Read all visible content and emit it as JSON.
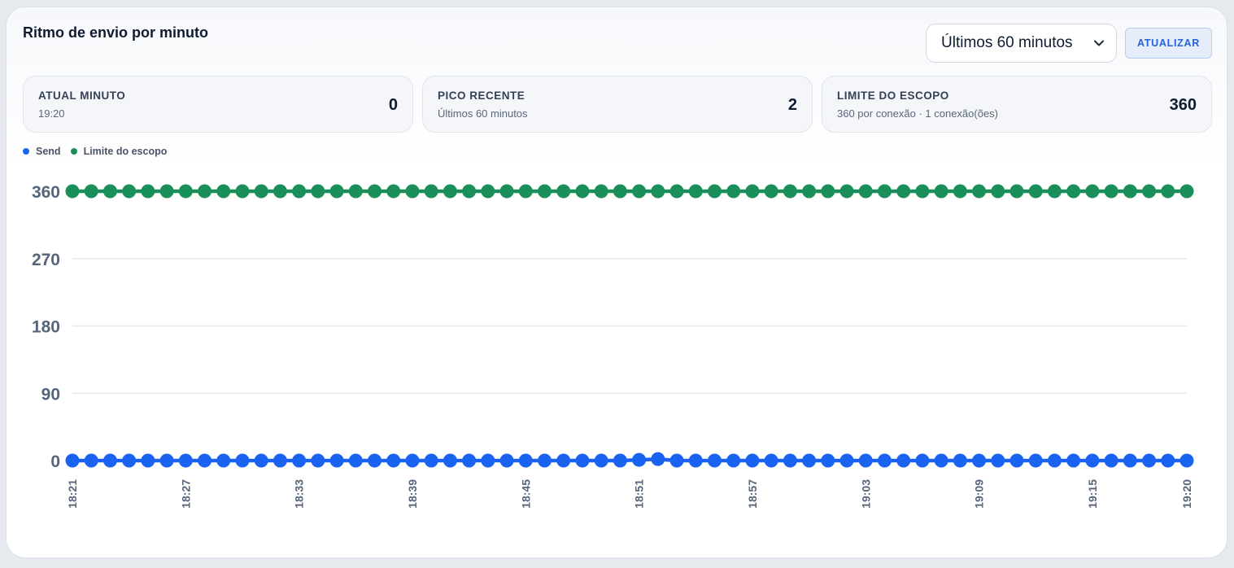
{
  "header": {
    "title": "Ritmo de envio por minuto",
    "range_select": {
      "value": "Últimos 60 minutos",
      "icon": "chevron-down-icon"
    },
    "refresh_label": "ATUALIZAR"
  },
  "stats": [
    {
      "label": "ATUAL MINUTO",
      "sub": "19:20",
      "value": "0"
    },
    {
      "label": "PICO RECENTE",
      "sub": "Últimos 60 minutos",
      "value": "2"
    },
    {
      "label": "LIMITE DO ESCOPO",
      "sub": "360 por conexão · 1 conexão(ões)",
      "value": "360"
    }
  ],
  "legend": [
    {
      "name": "Send",
      "color": "#1a63f0"
    },
    {
      "name": "Limite do escopo",
      "color": "#1a8f5a"
    }
  ],
  "chart_data": {
    "type": "line",
    "x": [
      "18:21",
      "18:22",
      "18:23",
      "18:24",
      "18:25",
      "18:26",
      "18:27",
      "18:28",
      "18:29",
      "18:30",
      "18:31",
      "18:32",
      "18:33",
      "18:34",
      "18:35",
      "18:36",
      "18:37",
      "18:38",
      "18:39",
      "18:40",
      "18:41",
      "18:42",
      "18:43",
      "18:44",
      "18:45",
      "18:46",
      "18:47",
      "18:48",
      "18:49",
      "18:50",
      "18:51",
      "18:52",
      "18:53",
      "18:54",
      "18:55",
      "18:56",
      "18:57",
      "18:58",
      "18:59",
      "19:00",
      "19:01",
      "19:02",
      "19:03",
      "19:04",
      "19:05",
      "19:06",
      "19:07",
      "19:08",
      "19:09",
      "19:10",
      "19:11",
      "19:12",
      "19:13",
      "19:14",
      "19:15",
      "19:16",
      "19:17",
      "19:18",
      "19:19",
      "19:20"
    ],
    "x_tick_labels": [
      "18:21",
      "18:27",
      "18:33",
      "18:39",
      "18:45",
      "18:51",
      "18:57",
      "19:03",
      "19:09",
      "19:15",
      "19:20"
    ],
    "series": [
      {
        "name": "Send",
        "color": "#1a63f0",
        "values": [
          0,
          0,
          0,
          0,
          0,
          0,
          0,
          0,
          0,
          0,
          0,
          0,
          0,
          0,
          0,
          0,
          0,
          0,
          0,
          0,
          0,
          0,
          0,
          0,
          0,
          0,
          0,
          0,
          0,
          0,
          1,
          2,
          0,
          0,
          0,
          0,
          0,
          0,
          0,
          0,
          0,
          0,
          0,
          0,
          0,
          0,
          0,
          0,
          0,
          0,
          0,
          0,
          0,
          0,
          0,
          0,
          0,
          0,
          0,
          0
        ]
      },
      {
        "name": "Limite do escopo",
        "color": "#1a8f5a",
        "values": [
          360,
          360,
          360,
          360,
          360,
          360,
          360,
          360,
          360,
          360,
          360,
          360,
          360,
          360,
          360,
          360,
          360,
          360,
          360,
          360,
          360,
          360,
          360,
          360,
          360,
          360,
          360,
          360,
          360,
          360,
          360,
          360,
          360,
          360,
          360,
          360,
          360,
          360,
          360,
          360,
          360,
          360,
          360,
          360,
          360,
          360,
          360,
          360,
          360,
          360,
          360,
          360,
          360,
          360,
          360,
          360,
          360,
          360,
          360,
          360
        ]
      }
    ],
    "y_ticks": [
      0,
      90,
      180,
      270,
      360
    ],
    "ylim": [
      0,
      360
    ],
    "grid": true,
    "legend_position": "top-left"
  }
}
